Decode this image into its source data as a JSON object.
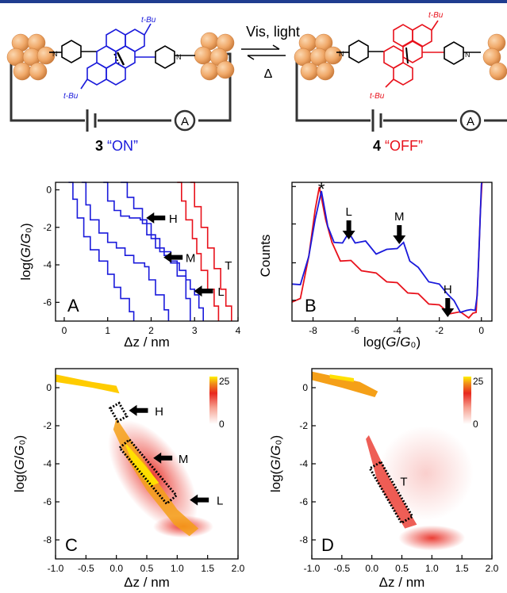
{
  "scheme": {
    "reaction_label": "Vis, light",
    "reverse_label": "Δ",
    "left": {
      "number": "3",
      "state": "“ON”",
      "color": "#1a1adb",
      "tbu": "t-Bu",
      "meter": "A"
    },
    "right": {
      "number": "4",
      "state": "“OFF”",
      "color": "#e8111b",
      "tbu": "t-Bu",
      "meter": "A"
    }
  },
  "colors": {
    "on": "#1a1adb",
    "off": "#e8111b",
    "gold": "#f0a868",
    "header": "#1f3d8f"
  },
  "chart_data": [
    {
      "panel": "A",
      "type": "line",
      "xlabel": "Δz / nm",
      "ylabel": "log(G/G₀)",
      "xlim": [
        -0.2,
        4.0
      ],
      "ylim": [
        -7.0,
        0.4
      ],
      "xticks": [
        "0",
        "1",
        "2",
        "3",
        "4"
      ],
      "yticks": [
        "0",
        "-2",
        "-4",
        "-6"
      ],
      "annotations": [
        {
          "text": "H",
          "x": 1.85,
          "y": -1.5
        },
        {
          "text": "M",
          "x": 2.25,
          "y": -3.6
        },
        {
          "text": "L",
          "x": 2.95,
          "y": -5.4
        },
        {
          "text": "T",
          "x": 3.45,
          "y": -4.0
        }
      ],
      "series": [
        {
          "color": "#1a1adb",
          "x": [
            0.1,
            0.2,
            0.3,
            0.45,
            0.6,
            0.8,
            1.0,
            1.15,
            1.3,
            1.5,
            1.6
          ],
          "y": [
            0.4,
            -0.5,
            -1.5,
            -2.5,
            -3.2,
            -3.8,
            -4.5,
            -5.2,
            -5.8,
            -6.5,
            -7.0
          ]
        },
        {
          "color": "#1a1adb",
          "x": [
            0.4,
            0.5,
            0.6,
            0.8,
            1.0,
            1.2,
            1.4,
            1.6,
            1.85,
            1.95,
            2.1,
            2.3,
            2.4
          ],
          "y": [
            0.4,
            -0.8,
            -1.6,
            -2.3,
            -2.8,
            -3.1,
            -3.5,
            -3.9,
            -4.1,
            -4.8,
            -5.6,
            -6.4,
            -7.0
          ]
        },
        {
          "color": "#1a1adb",
          "x": [
            0.9,
            1.0,
            1.15,
            1.3,
            1.5,
            1.75,
            1.9,
            2.1,
            2.3,
            2.45,
            2.6,
            2.8,
            2.9
          ],
          "y": [
            0.4,
            -0.6,
            -1.1,
            -1.4,
            -1.5,
            -1.6,
            -2.4,
            -3.1,
            -3.5,
            -3.8,
            -4.6,
            -5.8,
            -7.0
          ]
        },
        {
          "color": "#1a1adb",
          "x": [
            1.3,
            1.45,
            1.6,
            1.8,
            2.0,
            2.2,
            2.45,
            2.65,
            2.8,
            2.9,
            3.0,
            3.1,
            3.2
          ],
          "y": [
            0.4,
            -0.4,
            -1.0,
            -1.8,
            -2.6,
            -3.3,
            -3.9,
            -4.3,
            -4.8,
            -5.3,
            -5.6,
            -6.3,
            -7.0
          ]
        },
        {
          "color": "#e8111b",
          "x": [
            2.6,
            2.7,
            2.8,
            2.95,
            3.05,
            3.15,
            3.3,
            3.45,
            3.55
          ],
          "y": [
            0.4,
            -0.6,
            -1.6,
            -2.6,
            -3.4,
            -4.3,
            -5.3,
            -6.2,
            -7.0
          ]
        },
        {
          "color": "#e8111b",
          "x": [
            2.9,
            3.0,
            3.15,
            3.3,
            3.45,
            3.6,
            3.72,
            3.85
          ],
          "y": [
            0.4,
            -0.9,
            -2.0,
            -3.1,
            -4.2,
            -5.3,
            -6.2,
            -7.0
          ]
        }
      ]
    },
    {
      "panel": "B",
      "type": "line",
      "xlabel": "log(G/G₀)",
      "ylabel": "Counts",
      "xlim": [
        -9.0,
        0.5
      ],
      "xticks": [
        "-8",
        "-6",
        "-4",
        "-2",
        "0"
      ],
      "annotations": [
        {
          "text": "*",
          "x": -7.6
        },
        {
          "text": "L",
          "x": -6.3
        },
        {
          "text": "M",
          "x": -3.9
        },
        {
          "text": "H",
          "x": -1.6
        }
      ],
      "series": [
        {
          "color": "#1a1adb",
          "x": [
            -9.0,
            -8.6,
            -8.2,
            -7.9,
            -7.6,
            -7.3,
            -7.0,
            -6.6,
            -6.3,
            -6.0,
            -5.5,
            -5.0,
            -4.5,
            -4.0,
            -3.7,
            -3.4,
            -3.0,
            -2.5,
            -2.0,
            -1.6,
            -1.3,
            -1.0,
            -0.7,
            -0.5,
            -0.3,
            -0.2,
            -0.1,
            0.0,
            0.1
          ],
          "y": [
            0.25,
            0.28,
            0.45,
            0.75,
            0.92,
            0.7,
            0.55,
            0.58,
            0.62,
            0.58,
            0.56,
            0.5,
            0.5,
            0.54,
            0.55,
            0.45,
            0.37,
            0.3,
            0.25,
            0.21,
            0.13,
            0.08,
            0.06,
            0.1,
            0.06,
            0.2,
            0.55,
            1.0,
            1.2
          ]
        },
        {
          "color": "#e8111b",
          "x": [
            -9.0,
            -8.6,
            -8.2,
            -7.9,
            -7.7,
            -7.4,
            -7.1,
            -6.7,
            -6.2,
            -5.7,
            -5.0,
            -4.5,
            -4.0,
            -3.5,
            -3.0,
            -2.5,
            -2.0,
            -1.5,
            -1.0,
            -0.6,
            -0.4,
            -0.25,
            -0.15,
            -0.05,
            0.05,
            0.15
          ],
          "y": [
            0.12,
            0.18,
            0.45,
            0.82,
            0.95,
            0.75,
            0.55,
            0.45,
            0.42,
            0.38,
            0.33,
            0.3,
            0.26,
            0.22,
            0.18,
            0.14,
            0.1,
            0.07,
            0.05,
            0.04,
            0.04,
            0.08,
            0.35,
            0.8,
            1.2,
            1.2
          ]
        }
      ]
    },
    {
      "panel": "C",
      "type": "heatmap",
      "xlabel": "Δz / nm",
      "ylabel": "log(G/G₀)",
      "xlim": [
        -1.0,
        2.0
      ],
      "ylim": [
        -9.0,
        1.0
      ],
      "xticks": [
        "-1.0",
        "-0.5",
        "0.0",
        "0.5",
        "1.0",
        "1.5",
        "2.0"
      ],
      "yticks": [
        "0",
        "-2",
        "-4",
        "-6",
        "-8"
      ],
      "colorbar": {
        "max": "25",
        "min": "0"
      },
      "annotations": [
        {
          "text": "H",
          "x": 0.05,
          "y": -1.2
        },
        {
          "text": "M",
          "x": 0.45,
          "y": -3.7
        },
        {
          "text": "L",
          "x": 1.05,
          "y": -5.9
        }
      ]
    },
    {
      "panel": "D",
      "type": "heatmap",
      "xlabel": "Δz / nm",
      "ylabel": "log(G/G₀)",
      "xlim": [
        -1.0,
        2.0
      ],
      "ylim": [
        -9.0,
        1.0
      ],
      "xticks": [
        "-1.0",
        "-0.5",
        "0.0",
        "0.5",
        "1.0",
        "1.5",
        "2.0"
      ],
      "yticks": [
        "0",
        "-2",
        "-4",
        "-6",
        "-8"
      ],
      "colorbar": {
        "max": "25",
        "min": "0"
      },
      "annotations": [
        {
          "text": "T",
          "x": 0.4,
          "y": -4.9
        }
      ]
    }
  ]
}
